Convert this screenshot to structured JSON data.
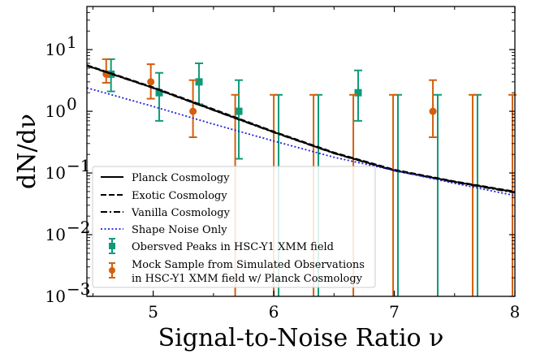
{
  "chart_data": {
    "type": "line",
    "xlabel": "Signal-to-Noise Ratio ν",
    "ylabel": "dN/dν",
    "xlim": [
      4.45,
      8.0
    ],
    "ylim": [
      0.001,
      50
    ],
    "yscale": "log",
    "xticks": [
      5,
      6,
      7,
      8
    ],
    "yticks": [
      {
        "value": 0.001,
        "base": "10",
        "exp": "−3"
      },
      {
        "value": 0.01,
        "base": "10",
        "exp": "−2"
      },
      {
        "value": 0.1,
        "base": "10",
        "exp": "−1"
      },
      {
        "value": 1,
        "base": "10",
        "exp": "0"
      },
      {
        "value": 10,
        "base": "10",
        "exp": "1"
      }
    ],
    "legend_position": "lower-left",
    "lines": [
      {
        "name": "Planck Cosmology",
        "style": "solid",
        "color": "#000000",
        "x": [
          4.45,
          5.0,
          5.5,
          6.0,
          6.5,
          7.0,
          7.5,
          8.0
        ],
        "y": [
          5.5,
          2.4,
          1.05,
          0.46,
          0.21,
          0.11,
          0.072,
          0.049
        ]
      },
      {
        "name": "Exotic Cosmology",
        "style": "dashed",
        "color": "#000000",
        "x": [
          4.45,
          5.0,
          5.5,
          6.0,
          6.5,
          7.0,
          7.5,
          8.0
        ],
        "y": [
          5.6,
          2.45,
          1.08,
          0.47,
          0.215,
          0.113,
          0.073,
          0.05
        ]
      },
      {
        "name": "Vanilla Cosmology",
        "style": "dashdot",
        "color": "#000000",
        "x": [
          4.45,
          5.0,
          5.5,
          6.0,
          6.5,
          7.0,
          7.5,
          8.0
        ],
        "y": [
          5.45,
          2.38,
          1.04,
          0.455,
          0.208,
          0.109,
          0.071,
          0.048
        ]
      },
      {
        "name": "Shape Noise Only",
        "style": "dotted",
        "color": "#1f1fdc",
        "x": [
          4.45,
          5.0,
          5.5,
          6.0,
          6.5,
          7.0,
          7.5,
          8.0
        ],
        "y": [
          2.4,
          1.2,
          0.62,
          0.33,
          0.18,
          0.11,
          0.068,
          0.043
        ]
      }
    ],
    "errorbar_series": [
      {
        "name": "Obersved Peaks in HSC-Y1 XMM field",
        "color": "#0e9a7a",
        "marker": "square",
        "points": [
          {
            "x": 4.65,
            "y": 4.0,
            "lo": 2.1,
            "hi": 7.0
          },
          {
            "x": 5.05,
            "y": 2.0,
            "lo": 0.7,
            "hi": 4.2
          },
          {
            "x": 5.38,
            "y": 3.0,
            "lo": 1.3,
            "hi": 6.0
          },
          {
            "x": 5.71,
            "y": 1.0,
            "lo": 0.17,
            "hi": 3.2
          },
          {
            "x": 6.04,
            "y": 0,
            "lo": 0.0001,
            "hi": 1.85
          },
          {
            "x": 6.37,
            "y": 0,
            "lo": 0.0001,
            "hi": 1.85
          },
          {
            "x": 6.7,
            "y": 2.0,
            "lo": 0.7,
            "hi": 4.6
          },
          {
            "x": 7.03,
            "y": 0,
            "lo": 0.0001,
            "hi": 1.85
          },
          {
            "x": 7.36,
            "y": 0,
            "lo": 0.0001,
            "hi": 1.85
          },
          {
            "x": 7.69,
            "y": 0,
            "lo": 0.0001,
            "hi": 1.85
          }
        ]
      },
      {
        "name": "Mock Sample from Simulated Observations\nin HSC-Y1 XMM field w/ Planck Cosmology",
        "color": "#d4600e",
        "marker": "circle",
        "points": [
          {
            "x": 4.61,
            "y": 4.0,
            "lo": 2.9,
            "hi": 7.0
          },
          {
            "x": 4.98,
            "y": 3.0,
            "lo": 1.6,
            "hi": 5.8
          },
          {
            "x": 5.33,
            "y": 1.0,
            "lo": 0.38,
            "hi": 3.2
          },
          {
            "x": 5.68,
            "y": 0,
            "lo": 0.0001,
            "hi": 1.85
          },
          {
            "x": 6.0,
            "y": 0,
            "lo": 0.0001,
            "hi": 1.85
          },
          {
            "x": 6.33,
            "y": 0,
            "lo": 0.0001,
            "hi": 1.85
          },
          {
            "x": 6.66,
            "y": 0,
            "lo": 0.0001,
            "hi": 1.85
          },
          {
            "x": 6.99,
            "y": 0,
            "lo": 0.0001,
            "hi": 1.85
          },
          {
            "x": 7.32,
            "y": 1.0,
            "lo": 0.38,
            "hi": 3.2
          },
          {
            "x": 7.65,
            "y": 0,
            "lo": 0.0001,
            "hi": 1.85
          },
          {
            "x": 7.98,
            "y": 0,
            "lo": 0.0001,
            "hi": 1.85
          }
        ]
      }
    ],
    "legend": [
      {
        "label": "Planck Cosmology",
        "kind": "line",
        "style": "solid",
        "color": "#000000"
      },
      {
        "label": "Exotic Cosmology",
        "kind": "line",
        "style": "dashed",
        "color": "#000000"
      },
      {
        "label": "Vanilla Cosmology",
        "kind": "line",
        "style": "dashdot",
        "color": "#000000"
      },
      {
        "label": "Shape Noise Only",
        "kind": "line",
        "style": "dotted",
        "color": "#1f1fdc"
      },
      {
        "label": "Obersved Peaks in HSC-Y1 XMM field",
        "kind": "errorbar",
        "marker": "square",
        "color": "#0e9a7a"
      },
      {
        "label": "Mock Sample from Simulated Observations\nin HSC-Y1 XMM field w/ Planck Cosmology",
        "kind": "errorbar",
        "marker": "circle",
        "color": "#d4600e"
      }
    ]
  }
}
